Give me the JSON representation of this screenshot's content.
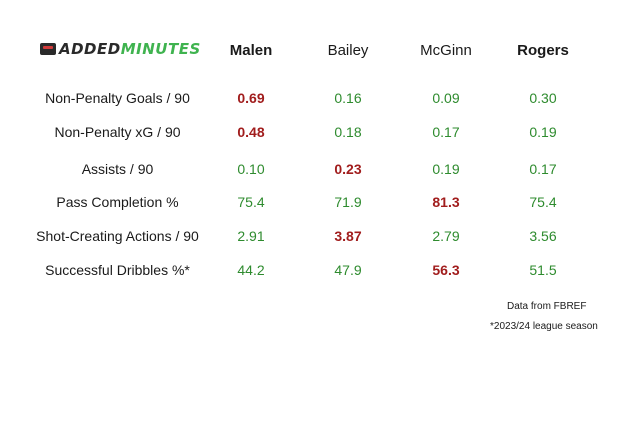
{
  "logo": {
    "part1": "ADDED",
    "part2": "MINUTES",
    "icon": "brand-mark-icon"
  },
  "colors": {
    "green": "#2e8b2e",
    "red": "#a11d1d"
  },
  "players": [
    {
      "name": "Malen",
      "bold": true
    },
    {
      "name": "Bailey",
      "bold": false
    },
    {
      "name": "McGinn",
      "bold": false
    },
    {
      "name": "Rogers",
      "bold": true
    }
  ],
  "rows": [
    {
      "label": "Non-Penalty Goals / 90",
      "values": [
        "0.69",
        "0.16",
        "0.09",
        "0.30"
      ],
      "highlight": 0
    },
    {
      "label": "Non-Penalty xG / 90",
      "values": [
        "0.48",
        "0.18",
        "0.17",
        "0.19"
      ],
      "highlight": 0
    },
    {
      "label": "Assists / 90",
      "values": [
        "0.10",
        "0.23",
        "0.19",
        "0.17"
      ],
      "highlight": 1
    },
    {
      "label": "Pass Completion %",
      "values": [
        "75.4",
        "71.9",
        "81.3",
        "75.4"
      ],
      "highlight": 2
    },
    {
      "label": "Shot-Creating Actions / 90",
      "values": [
        "2.91",
        "3.87",
        "2.79",
        "3.56"
      ],
      "highlight": 1
    },
    {
      "label": "Successful Dribbles %*",
      "values": [
        "44.2",
        "47.9",
        "56.3",
        "51.5"
      ],
      "highlight": 2
    }
  ],
  "footnotes": {
    "source": "Data from FBREF",
    "season": "*2023/24 league season"
  }
}
